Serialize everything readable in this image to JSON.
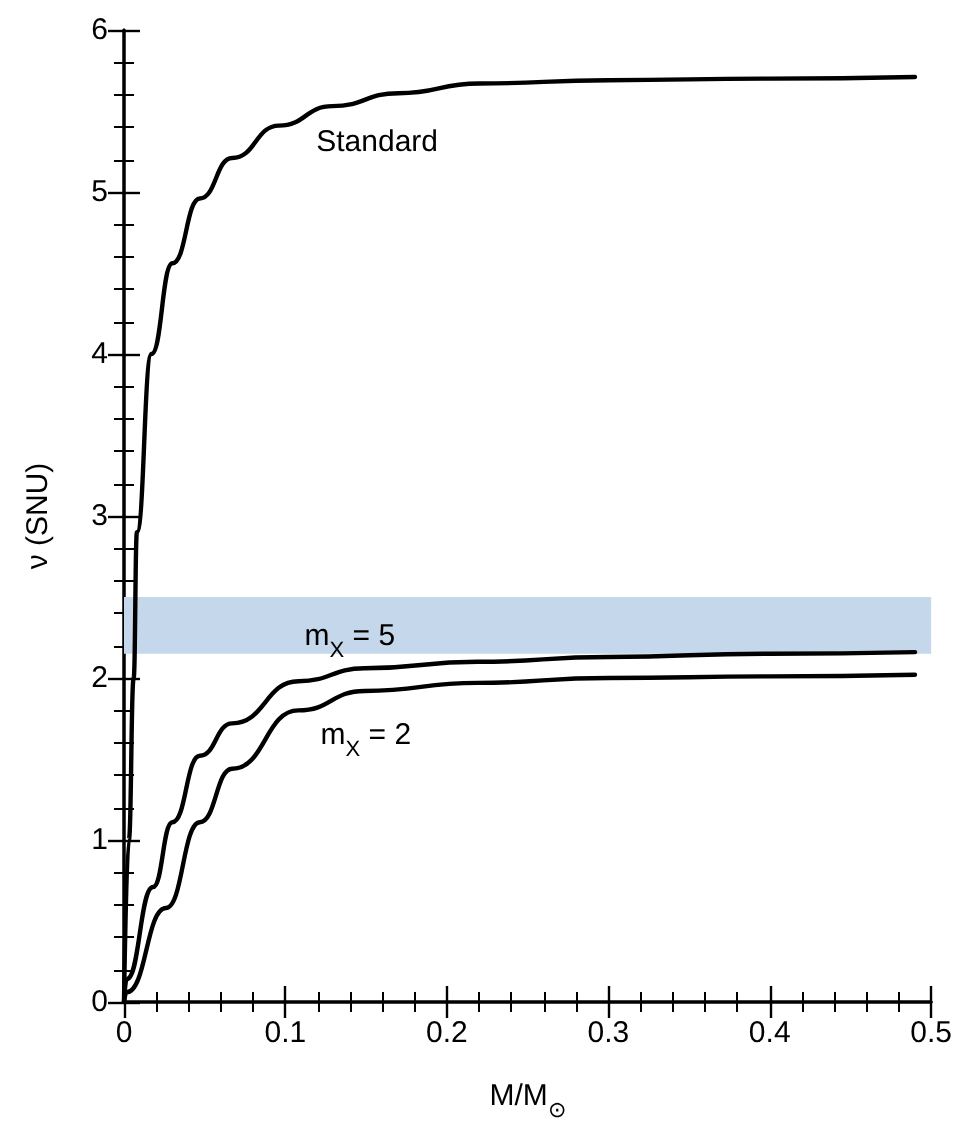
{
  "chart_data": {
    "type": "line",
    "xlabel": "M/M$_{⊙}$",
    "ylabel": "ν (SNU)",
    "xlim": [
      0,
      0.5
    ],
    "xticks": [
      0,
      0.1,
      0.2,
      0.3,
      0.4,
      0.5
    ],
    "ylim": [
      0,
      6
    ],
    "yticks": [
      0,
      1,
      2,
      3,
      4,
      5,
      6
    ],
    "grid": false,
    "legend": false,
    "marker": "none",
    "line_style": "solid",
    "bands": [
      {
        "axis": "y",
        "from": 2.15,
        "to": 2.5,
        "color": "#c5d7ea"
      }
    ],
    "series": [
      {
        "name": "Standard",
        "color": "#000000",
        "x": [
          0,
          0.003,
          0.006,
          0.008,
          0.017,
          0.03,
          0.047,
          0.067,
          0.096,
          0.129,
          0.17,
          0.22,
          0.3,
          0.4,
          0.49
        ],
        "values": [
          0,
          1,
          2,
          2.9,
          4.0,
          4.56,
          4.96,
          5.21,
          5.41,
          5.53,
          5.61,
          5.67,
          5.69,
          5.7,
          5.71
        ]
      },
      {
        "name": "m$_{X}$ = 5",
        "color": "#000000",
        "x": [
          0,
          0.0016,
          0.018,
          0.03,
          0.047,
          0.067,
          0.108,
          0.149,
          0.219,
          0.3,
          0.4,
          0.49
        ],
        "values": [
          0,
          0.14,
          0.71,
          1.11,
          1.52,
          1.72,
          1.98,
          2.06,
          2.1,
          2.13,
          2.15,
          2.16
        ]
      },
      {
        "name": "m$_{X}$ = 2",
        "color": "#000000",
        "x": [
          0,
          0.0016,
          0.026,
          0.047,
          0.067,
          0.108,
          0.149,
          0.219,
          0.3,
          0.4,
          0.49
        ],
        "values": [
          0,
          0.06,
          0.58,
          1.11,
          1.44,
          1.8,
          1.92,
          1.97,
          2.0,
          2.01,
          2.02
        ]
      }
    ]
  }
}
